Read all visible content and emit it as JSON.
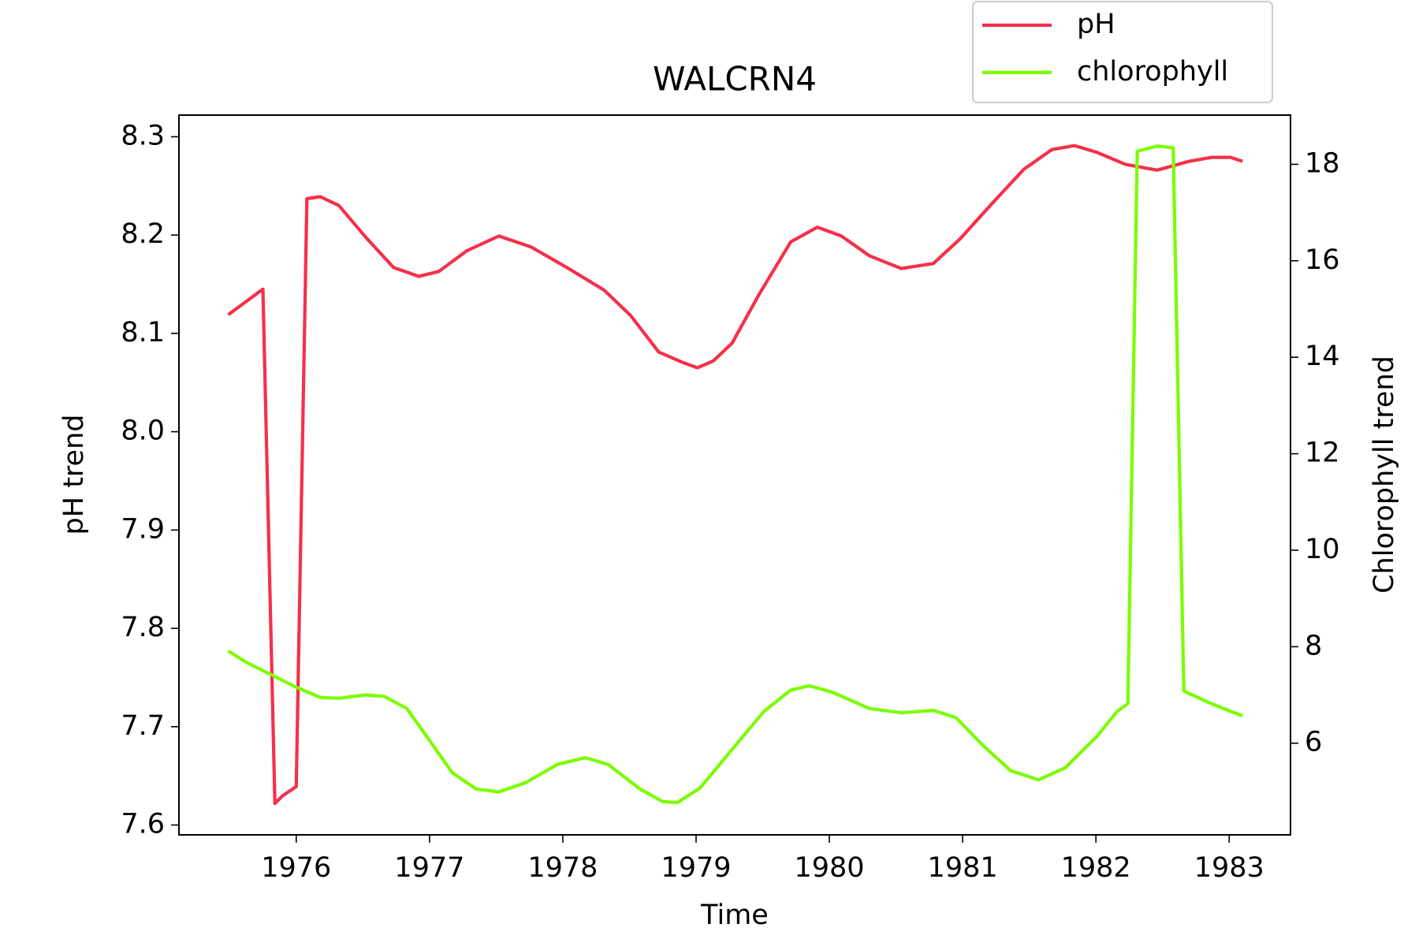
{
  "chart_data": {
    "type": "line",
    "title": "WALCRN4",
    "xlabel": "Time",
    "ylabel": "pH trend",
    "y2label": "Chlorophyll trend",
    "xlim": [
      1975.12,
      1983.46
    ],
    "xticks": [
      1976,
      1977,
      1978,
      1979,
      1980,
      1981,
      1982,
      1983
    ],
    "ylim": [
      7.59,
      8.322
    ],
    "yticks": [
      7.6,
      7.7,
      7.8,
      7.9,
      {
        "value": 8,
        "label": "8.0"
      },
      8.1,
      8.2,
      8.3
    ],
    "y2lim": [
      4.1,
      19.02
    ],
    "y2ticks": [
      6,
      8,
      10,
      12,
      14,
      16,
      18
    ],
    "grid": false,
    "legend": "upper right",
    "series": [
      {
        "name": "pH",
        "color": "#f5304a",
        "x": [
          1975.49,
          1975.75,
          1975.84,
          1975.9,
          1976.0,
          1976.08,
          1976.18,
          1976.32,
          1976.52,
          1976.73,
          1976.92,
          1977.07,
          1977.28,
          1977.52,
          1977.76,
          1978.03,
          1978.31,
          1978.51,
          1978.72,
          1978.89,
          1979.01,
          1979.13,
          1979.27,
          1979.47,
          1979.71,
          1979.91,
          1980.09,
          1980.3,
          1980.54,
          1980.78,
          1980.98,
          1981.22,
          1981.46,
          1981.67,
          1981.84,
          1982.01,
          1982.22,
          1982.46,
          1982.7,
          1982.87,
          1983.01,
          1983.1
        ],
        "values": [
          8.119,
          8.145,
          7.622,
          7.63,
          7.639,
          8.237,
          8.239,
          8.23,
          8.198,
          8.167,
          8.158,
          8.163,
          8.184,
          8.199,
          8.188,
          8.167,
          8.144,
          8.118,
          8.081,
          8.071,
          8.065,
          8.072,
          8.09,
          8.139,
          8.193,
          8.208,
          8.199,
          8.179,
          8.166,
          8.171,
          8.196,
          8.232,
          8.267,
          8.287,
          8.291,
          8.284,
          8.272,
          8.266,
          8.275,
          8.279,
          8.279,
          8.275
        ]
      },
      {
        "name": "chlorophyll",
        "color": "#7cfc00",
        "axis": "y2",
        "x": [
          1975.49,
          1975.63,
          1975.84,
          1976.0,
          1976.18,
          1976.32,
          1976.52,
          1976.66,
          1976.83,
          1977.0,
          1977.17,
          1977.35,
          1977.52,
          1977.72,
          1977.96,
          1978.17,
          1978.34,
          1978.58,
          1978.75,
          1978.86,
          1979.03,
          1979.27,
          1979.51,
          1979.71,
          1979.85,
          1980.02,
          1980.3,
          1980.54,
          1980.78,
          1980.95,
          1981.15,
          1981.36,
          1981.57,
          1981.77,
          1982.01,
          1982.16,
          1982.24,
          1982.31,
          1982.46,
          1982.58,
          1982.66,
          1982.84,
          1983.01,
          1983.1
        ],
        "values": [
          7.91,
          7.67,
          7.38,
          7.16,
          6.95,
          6.93,
          7.0,
          6.97,
          6.72,
          6.06,
          5.39,
          5.05,
          4.99,
          5.18,
          5.56,
          5.7,
          5.56,
          5.05,
          4.79,
          4.77,
          5.07,
          5.87,
          6.66,
          7.1,
          7.19,
          7.06,
          6.72,
          6.63,
          6.68,
          6.53,
          5.96,
          5.43,
          5.24,
          5.49,
          6.15,
          6.66,
          6.82,
          18.27,
          18.38,
          18.34,
          7.08,
          6.85,
          6.66,
          6.57
        ]
      }
    ]
  }
}
